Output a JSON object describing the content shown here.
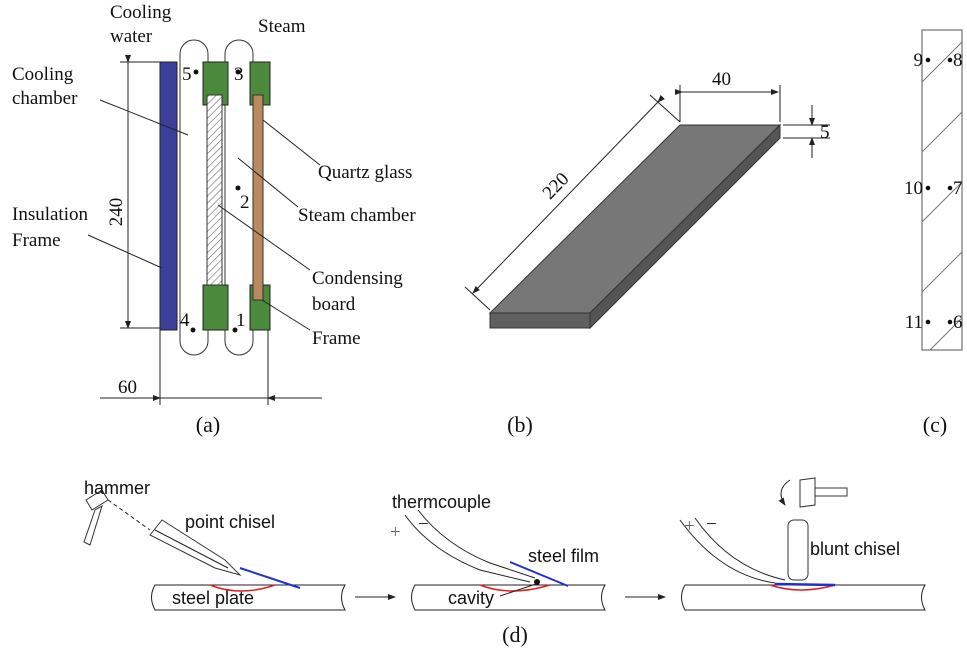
{
  "panel_a": {
    "cooling_water": [
      "Cooling",
      "water"
    ],
    "steam": "Steam",
    "cooling_chamber": [
      "Cooling",
      "chamber"
    ],
    "insulation_frame": [
      "Insulation",
      "Frame"
    ],
    "quartz_glass": "Quartz glass",
    "steam_chamber": "Steam chamber",
    "condensing_board": [
      "Condensing",
      "board"
    ],
    "frame": "Frame",
    "height_dim": "240",
    "width_dim": "60",
    "points": [
      "5",
      "3",
      "2",
      "4",
      "1"
    ],
    "caption": "(a)"
  },
  "panel_b": {
    "width_dim": "40",
    "thickness_dim": "5",
    "length_dim": "220",
    "caption": "(b)"
  },
  "panel_c": {
    "points": [
      "9",
      "8",
      "10",
      "7",
      "11",
      "6"
    ],
    "caption": "(c)"
  },
  "panel_d": {
    "hammer": "hammer",
    "point_chisel": "point chisel",
    "steel_plate": "steel plate",
    "thermocouple": "thermcouple",
    "steel_film": "steel film",
    "cavity": "cavity",
    "blunt_chisel": "blunt chisel",
    "plus": "+",
    "minus": "−",
    "caption": "(d)"
  }
}
